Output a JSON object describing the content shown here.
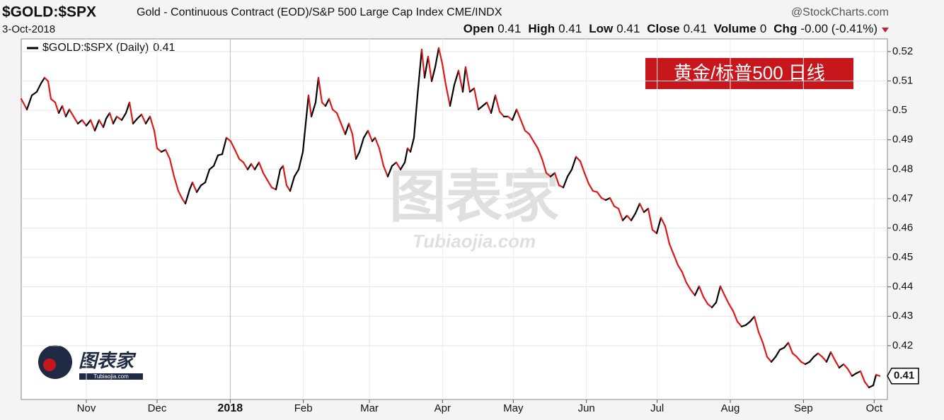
{
  "chart_data": {
    "type": "line",
    "title": "$GOLD:$SPX",
    "subtitle": "Gold - Continuous Contract (EOD)/S&P 500 Large Cap Index CME/INDX",
    "source": "@StockCharts.com",
    "date": "3-Oct-2018",
    "stats": [
      {
        "label": "Open",
        "value": "0.41"
      },
      {
        "label": "High",
        "value": "0.41"
      },
      {
        "label": "Low",
        "value": "0.41"
      },
      {
        "label": "Close",
        "value": "0.41"
      },
      {
        "label": "Volume",
        "value": "0"
      },
      {
        "label": "Chg",
        "value": "-0.00 (-0.41%)"
      }
    ],
    "annotation": "黄金/标普500  日线",
    "watermark": "图表家",
    "watermark_url": "Tubiaojia.com",
    "last_value_label": "0.41",
    "up_color": "#000000",
    "down_color": "#e01818",
    "grid": true,
    "series": [
      {
        "name": "$GOLD:$SPX (Daily)",
        "x": [
          -27.6,
          -25.2,
          -23.1,
          -21,
          -19.2,
          -17.7,
          -16.2,
          -15,
          -13.2,
          -11.7,
          -10.2,
          -8.7,
          -7.2,
          -5.4,
          -3.6,
          -1.8,
          0,
          1.8,
          3.6,
          5.4,
          7.2,
          8.4,
          9.9,
          11.4,
          12.9,
          15,
          16.8,
          18.3,
          19.8,
          21.6,
          23.4,
          25.2,
          27,
          28.8,
          30,
          31.8,
          33.6,
          35.4,
          37.2,
          39,
          40.5,
          42,
          43.8,
          45,
          46.8,
          48.6,
          50.4,
          52.2,
          54,
          55.8,
          57.6,
          59.4,
          61.2,
          63,
          64.8,
          66.6,
          68.4,
          69.9,
          71.4,
          73.2,
          75,
          76.8,
          78.6,
          80.4,
          82.2,
          83.4,
          84.9,
          86.4,
          88.2,
          90,
          91.8,
          93,
          94.2,
          95.4,
          97.2,
          98.4,
          99.9,
          101.4,
          102.9,
          104.4,
          106.2,
          108,
          109.8,
          111.3,
          112.8,
          114.3,
          115.8,
          117.6,
          119.4,
          121.2,
          122.4,
          124.2,
          126,
          127.8,
          129.6,
          131.4,
          133.2,
          135,
          136.2,
          137.4,
          138.9,
          140.4,
          142.2,
          143.4,
          144.9,
          146.4,
          147.9,
          149.4,
          150.9,
          152.4,
          154.2,
          156,
          157.8,
          159.6,
          160.8,
          162.6,
          164.4,
          166.2,
          168,
          169.8,
          171.6,
          173.4,
          175.2,
          177,
          178.8,
          180.6,
          182.4,
          184.2,
          186,
          187.8,
          189.6,
          191.4,
          193.2,
          195,
          196.8,
          198.6,
          200.4,
          202.2,
          204,
          205.8,
          207.6,
          209.4,
          211.2,
          213,
          214.8,
          216.6,
          218.4,
          220.2,
          222,
          223.8,
          225.6,
          227.4,
          229.2,
          231,
          232.8,
          234.6,
          236.4,
          238.2,
          240,
          241.8,
          243.6,
          245.4,
          247.2,
          249,
          250.8,
          252.6,
          254.4,
          256.2,
          258,
          259.8,
          261.6,
          263.4,
          265.2,
          267,
          268.8,
          270.6,
          272.4,
          274.2,
          276,
          277.8,
          279.6,
          281.4,
          283.2,
          285,
          286.8,
          288.6,
          290.4,
          292.2,
          294,
          295.8,
          297.6,
          299.4,
          301.2,
          303,
          304.8,
          306.6,
          308.4,
          310.2,
          312,
          313.8,
          315.6,
          317.4,
          319.2,
          321,
          322.8,
          324.6,
          326.4,
          328.2,
          330,
          331.8,
          333.6,
          334.8,
          336.3
        ],
        "values": [
          0.5039,
          0.5003,
          0.5051,
          0.5063,
          0.5092,
          0.5111,
          0.5099,
          0.5039,
          0.5027,
          0.4991,
          0.5015,
          0.4979,
          0.5003,
          0.4979,
          0.4955,
          0.4967,
          0.4948,
          0.4967,
          0.4931,
          0.4967,
          0.4943,
          0.4972,
          0.4991,
          0.4955,
          0.4979,
          0.4967,
          0.4991,
          0.5027,
          0.4955,
          0.4972,
          0.4986,
          0.4955,
          0.4979,
          0.4931,
          0.4871,
          0.4859,
          0.4866,
          0.4835,
          0.4775,
          0.4726,
          0.4702,
          0.4683,
          0.4731,
          0.4755,
          0.4722,
          0.4745,
          0.4755,
          0.4799,
          0.4811,
          0.4847,
          0.4851,
          0.4907,
          0.4895,
          0.4866,
          0.4835,
          0.4823,
          0.4799,
          0.4818,
          0.4799,
          0.4823,
          0.4787,
          0.4762,
          0.4738,
          0.4731,
          0.4799,
          0.4811,
          0.4745,
          0.4726,
          0.4775,
          0.4799,
          0.4859,
          0.4955,
          0.5051,
          0.4979,
          0.5027,
          0.5111,
          0.5027,
          0.5015,
          0.5039,
          0.5003,
          0.4991,
          0.4955,
          0.4919,
          0.4955,
          0.4919,
          0.4835,
          0.4859,
          0.4907,
          0.4931,
          0.4895,
          0.4907,
          0.4871,
          0.4811,
          0.4775,
          0.4811,
          0.4823,
          0.4799,
          0.4823,
          0.4871,
          0.4859,
          0.4907,
          0.5051,
          0.5207,
          0.5111,
          0.5183,
          0.5099,
          0.5147,
          0.5212,
          0.5159,
          0.5087,
          0.5015,
          0.5087,
          0.5135,
          0.5063,
          0.5147,
          0.5063,
          0.5075,
          0.5003,
          0.5015,
          0.5027,
          0.4991,
          0.5051,
          0.4996,
          0.4979,
          0.4979,
          0.4967,
          0.5003,
          0.4967,
          0.4931,
          0.4919,
          0.4895,
          0.4871,
          0.4835,
          0.4787,
          0.4775,
          0.4787,
          0.4745,
          0.4738,
          0.4775,
          0.4799,
          0.4842,
          0.4827,
          0.4787,
          0.475,
          0.4726,
          0.4722,
          0.4702,
          0.4695,
          0.4702,
          0.4674,
          0.4666,
          0.4626,
          0.4642,
          0.4626,
          0.465,
          0.4683,
          0.4654,
          0.4666,
          0.4594,
          0.4582,
          0.4635,
          0.4606,
          0.4546,
          0.451,
          0.4474,
          0.445,
          0.4414,
          0.439,
          0.4371,
          0.4402,
          0.4366,
          0.4342,
          0.433,
          0.4347,
          0.4402,
          0.4371,
          0.4342,
          0.4318,
          0.4282,
          0.4265,
          0.427,
          0.4282,
          0.4299,
          0.4246,
          0.421,
          0.4162,
          0.4145,
          0.4162,
          0.4186,
          0.4193,
          0.421,
          0.4174,
          0.4162,
          0.4145,
          0.4137,
          0.4145,
          0.4162,
          0.4174,
          0.4162,
          0.4145,
          0.4178,
          0.415,
          0.4125,
          0.4137,
          0.4121,
          0.4097,
          0.4106,
          0.4113,
          0.4077,
          0.4058,
          0.4065,
          0.4101,
          0.4097
        ]
      }
    ],
    "xlim": [
      -27.6,
      339.6
    ],
    "xticks": [
      {
        "value": 0,
        "label": "Nov"
      },
      {
        "value": 30,
        "label": "Dec"
      },
      {
        "value": 61,
        "label": "2018"
      },
      {
        "value": 92,
        "label": "Feb"
      },
      {
        "value": 120,
        "label": "Mar"
      },
      {
        "value": 151,
        "label": "Apr"
      },
      {
        "value": 181,
        "label": "May"
      },
      {
        "value": 212,
        "label": "Jun"
      },
      {
        "value": 242,
        "label": "Jul"
      },
      {
        "value": 273,
        "label": "Aug"
      },
      {
        "value": 304,
        "label": "Sep"
      },
      {
        "value": 334,
        "label": "Oct"
      }
    ],
    "ylim": [
      0.4017,
      0.5243
    ],
    "yticks": [
      0.42,
      0.43,
      0.44,
      0.45,
      0.46,
      0.47,
      0.48,
      0.49,
      0.5,
      0.51,
      0.52
    ]
  }
}
